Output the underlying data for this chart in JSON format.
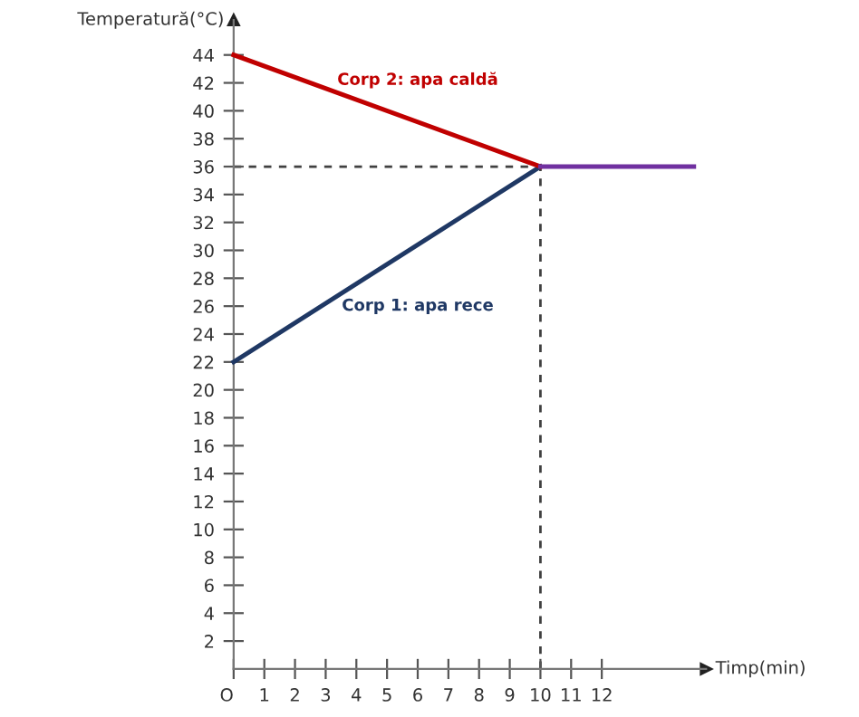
{
  "chart_data": {
    "type": "line",
    "xlabel": "Timp(min)",
    "ylabel": "Temperatură(°C)",
    "xlim": [
      0,
      15.4
    ],
    "ylim": [
      0,
      46.5
    ],
    "xticks": [
      {
        "value": 0,
        "label": "O"
      },
      1,
      2,
      3,
      4,
      5,
      6,
      7,
      8,
      9,
      10,
      11,
      12
    ],
    "yticks": [
      2,
      4,
      6,
      8,
      10,
      12,
      14,
      16,
      18,
      20,
      22,
      24,
      26,
      28,
      30,
      32,
      34,
      36,
      38,
      40,
      42,
      44
    ],
    "grid": false,
    "legend": false,
    "marker": "none",
    "series": [
      {
        "name": "Corp 1: apa rece",
        "color": "#1f3864",
        "x": [
          0,
          10
        ],
        "values": [
          22,
          36
        ]
      },
      {
        "name": "Corp 2: apa caldă",
        "color": "#c00000",
        "x": [
          0,
          10
        ],
        "values": [
          44,
          36
        ]
      },
      {
        "color": "#7030a0",
        "x": [
          10,
          15
        ],
        "values": [
          36,
          36
        ]
      },
      {
        "color": "#404040",
        "x": [
          0,
          10
        ],
        "values": [
          36,
          36
        ],
        "line_style": "dashed"
      },
      {
        "color": "#404040",
        "x": [
          10,
          10
        ],
        "values": [
          0,
          36
        ],
        "line_style": "dashed"
      }
    ]
  }
}
